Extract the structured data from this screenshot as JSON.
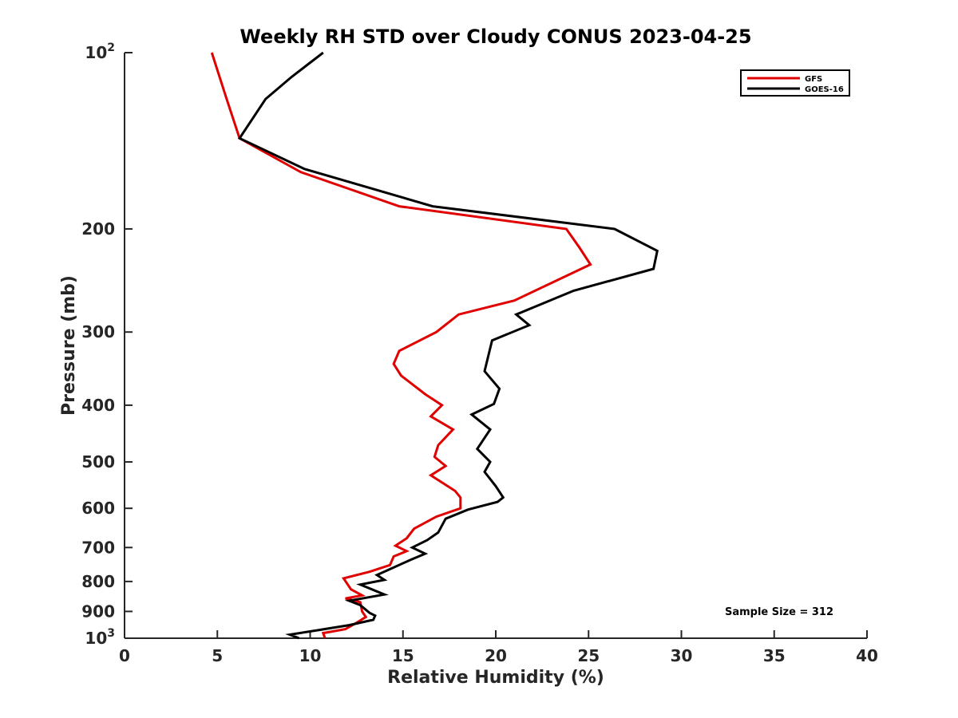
{
  "chart_data": {
    "type": "line",
    "title": "Weekly RH STD over Cloudy CONUS 2023-04-25",
    "xlabel": "Relative Humidity (%)",
    "ylabel": "Pressure (mb)",
    "xlim": [
      0,
      40
    ],
    "ylim": [
      100,
      1000
    ],
    "y_scale": "log",
    "y_reversed": true,
    "x_ticks": [
      0,
      5,
      10,
      15,
      20,
      25,
      30,
      35,
      40
    ],
    "y_ticks": [
      {
        "value": 100,
        "label_base": "10",
        "label_exp": "2"
      },
      {
        "value": 200,
        "label": "200"
      },
      {
        "value": 300,
        "label": "300"
      },
      {
        "value": 400,
        "label": "400"
      },
      {
        "value": 500,
        "label": "500"
      },
      {
        "value": 600,
        "label": "600"
      },
      {
        "value": 700,
        "label": "700"
      },
      {
        "value": 800,
        "label": "800"
      },
      {
        "value": 900,
        "label": "900"
      },
      {
        "value": 1000,
        "label_base": "10",
        "label_exp": "3"
      }
    ],
    "grid": false,
    "legend_position": "top-right",
    "annotation": "Sample Size = 312",
    "series": [
      {
        "name": "GFS",
        "color": "#e00000",
        "points": [
          [
            4.7,
            100
          ],
          [
            5.5,
            120
          ],
          [
            6.2,
            140
          ],
          [
            9.5,
            160
          ],
          [
            14.8,
            183
          ],
          [
            23.8,
            200
          ],
          [
            24.5,
            215
          ],
          [
            25.1,
            230
          ],
          [
            21.0,
            265
          ],
          [
            18.0,
            280
          ],
          [
            16.8,
            300
          ],
          [
            14.8,
            323
          ],
          [
            14.5,
            340
          ],
          [
            14.9,
            356
          ],
          [
            16.2,
            383
          ],
          [
            17.1,
            400
          ],
          [
            16.5,
            418
          ],
          [
            17.7,
            440
          ],
          [
            16.9,
            468
          ],
          [
            16.7,
            490
          ],
          [
            17.3,
            508
          ],
          [
            16.5,
            527
          ],
          [
            17.8,
            560
          ],
          [
            18.1,
            575
          ],
          [
            18.1,
            600
          ],
          [
            16.8,
            620
          ],
          [
            15.6,
            650
          ],
          [
            15.2,
            675
          ],
          [
            14.6,
            695
          ],
          [
            15.2,
            710
          ],
          [
            14.5,
            725
          ],
          [
            14.3,
            750
          ],
          [
            13.2,
            770
          ],
          [
            11.8,
            790
          ],
          [
            12.2,
            825
          ],
          [
            12.8,
            845
          ],
          [
            11.9,
            855
          ],
          [
            12.7,
            868
          ],
          [
            12.8,
            900
          ],
          [
            13.0,
            920
          ],
          [
            12.4,
            945
          ],
          [
            11.9,
            965
          ],
          [
            10.7,
            980
          ],
          [
            10.8,
            1000
          ]
        ]
      },
      {
        "name": "GOES-16",
        "color": "#000000",
        "points": [
          [
            10.7,
            100
          ],
          [
            9.0,
            110
          ],
          [
            7.6,
            120
          ],
          [
            6.2,
            140
          ],
          [
            9.7,
            158
          ],
          [
            16.6,
            183
          ],
          [
            26.4,
            200
          ],
          [
            28.7,
            218
          ],
          [
            28.5,
            234
          ],
          [
            24.2,
            255
          ],
          [
            21.1,
            280
          ],
          [
            21.8,
            292
          ],
          [
            19.8,
            310
          ],
          [
            19.4,
            350
          ],
          [
            20.2,
            375
          ],
          [
            19.9,
            398
          ],
          [
            18.7,
            415
          ],
          [
            19.7,
            440
          ],
          [
            19.0,
            475
          ],
          [
            19.7,
            500
          ],
          [
            19.4,
            520
          ],
          [
            20.0,
            550
          ],
          [
            20.4,
            575
          ],
          [
            20.1,
            585
          ],
          [
            18.5,
            603
          ],
          [
            17.3,
            625
          ],
          [
            16.9,
            660
          ],
          [
            16.3,
            680
          ],
          [
            15.5,
            700
          ],
          [
            16.2,
            717
          ],
          [
            15.4,
            735
          ],
          [
            13.6,
            780
          ],
          [
            14.0,
            795
          ],
          [
            12.7,
            810
          ],
          [
            14.0,
            842
          ],
          [
            12.1,
            863
          ],
          [
            12.7,
            878
          ],
          [
            13.2,
            905
          ],
          [
            13.5,
            915
          ],
          [
            13.4,
            930
          ],
          [
            12.1,
            950
          ],
          [
            10.5,
            968
          ],
          [
            8.9,
            986
          ],
          [
            9.4,
            1000
          ]
        ]
      }
    ]
  }
}
